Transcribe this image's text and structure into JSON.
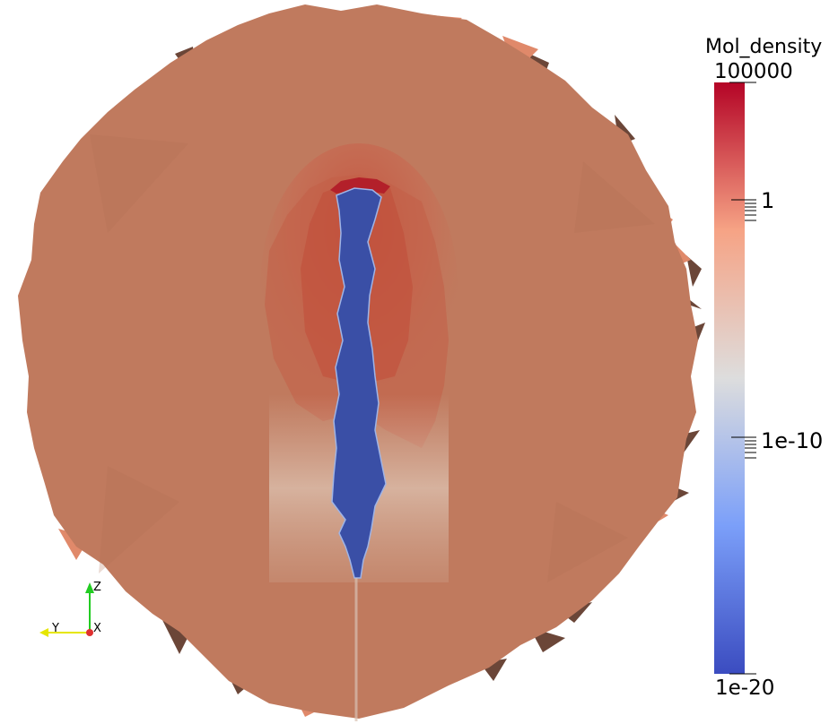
{
  "colorbar": {
    "title": "Mol_density",
    "max_label": "100000",
    "min_label": "1e-20",
    "tick_labels": [
      "1",
      "1e-10"
    ],
    "range": [
      1e-20,
      100000
    ],
    "scale": "log",
    "colormap": "cool-to-warm",
    "colors": {
      "high": "#b40426",
      "mid": "#dddddd",
      "low": "#3b4cc0"
    }
  },
  "orientation_axes": {
    "z_label": "Z",
    "y_label": "Y",
    "x_label": "X",
    "z_color": "#22cc22",
    "y_color": "#e6e600",
    "x_color": "#e03030"
  },
  "render": {
    "surface_color": "#c07a5e",
    "background": "#ffffff"
  }
}
